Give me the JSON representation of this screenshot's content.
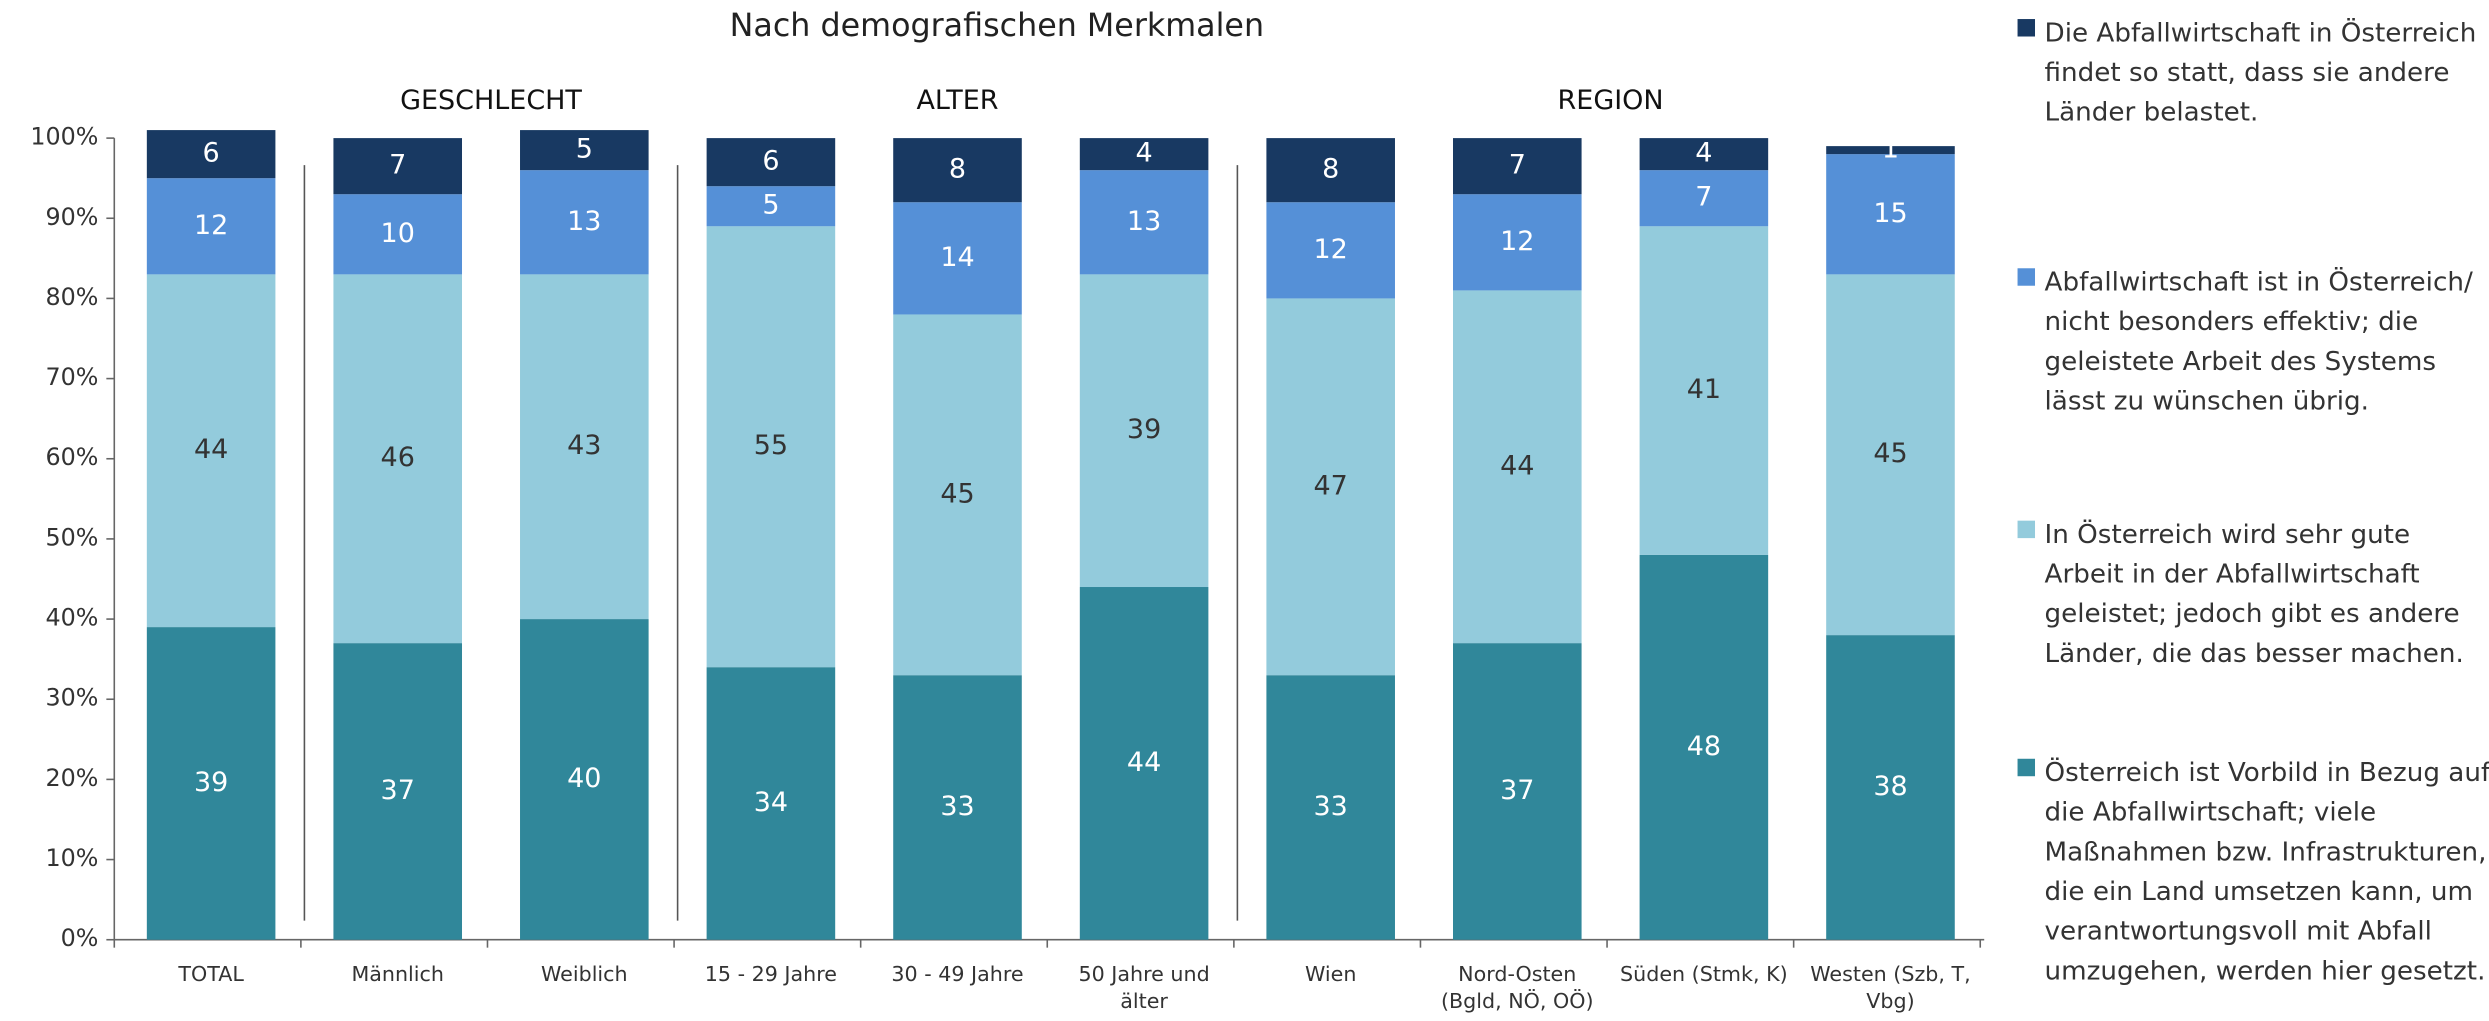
{
  "chart_data": {
    "type": "stacked_bar",
    "title": "Nach demografischen Merkmalen",
    "groups": [
      "GESCHLECHT",
      "ALTER",
      "REGION"
    ],
    "categories": [
      "TOTAL",
      "Männlich",
      "Weiblich",
      "15 - 29 Jahre",
      "30 - 49 Jahre",
      "50 Jahre und\nälter",
      "Wien",
      "Nord-Osten\n(Bgld, NÖ, OÖ)",
      "Süden (Stmk, K)",
      "Westen (Szb, T,\nVbg)"
    ],
    "series": [
      {
        "name": "Österreich ist Vorbild in Bezug auf die Abfallwirtschaft; viele Maßnahmen bzw. Infrastrukturen, die ein Land umsetzen kann, um verantwortungsvoll mit Abfall umzugehen, werden hier gesetzt.",
        "color": "#30879a",
        "label_color": "#ffffff",
        "values": [
          39,
          37,
          40,
          34,
          33,
          44,
          33,
          37,
          48,
          38
        ]
      },
      {
        "name": "In Österreich wird sehr gute Arbeit in der Abfallwirtschaft geleistet; jedoch gibt es andere Länder, die das besser machen.",
        "color": "#93cbdc",
        "label_color": "#333333",
        "values": [
          44,
          46,
          43,
          55,
          45,
          39,
          47,
          44,
          41,
          45
        ]
      },
      {
        "name": "Abfallwirtschaft ist in Österreich/ nicht besonders effektiv; die geleistete Arbeit des Systems lässt zu wünschen übrig.",
        "color": "#5590d7",
        "label_color": "#ffffff",
        "values": [
          12,
          10,
          13,
          5,
          14,
          13,
          12,
          12,
          7,
          15
        ]
      },
      {
        "name": "Die Abfallwirtschaft in Österreich findet so statt, dass sie andere Länder belastet.",
        "color": "#183962",
        "label_color": "#ffffff",
        "values": [
          6,
          7,
          5,
          6,
          8,
          4,
          8,
          7,
          4,
          1
        ]
      }
    ],
    "ylim": [
      0,
      100
    ],
    "yticks": [
      {
        "value": 0,
        "label": "0%"
      },
      {
        "value": 10,
        "label": "10%"
      },
      {
        "value": 20,
        "label": "20%"
      },
      {
        "value": 30,
        "label": "30%"
      },
      {
        "value": 40,
        "label": "40%"
      },
      {
        "value": 50,
        "label": "50%"
      },
      {
        "value": 60,
        "label": "60%"
      },
      {
        "value": 70,
        "label": "70%"
      },
      {
        "value": 80,
        "label": "80%"
      },
      {
        "value": 90,
        "label": "90%"
      },
      {
        "value": 100,
        "label": "100%"
      }
    ],
    "legend": "right"
  }
}
